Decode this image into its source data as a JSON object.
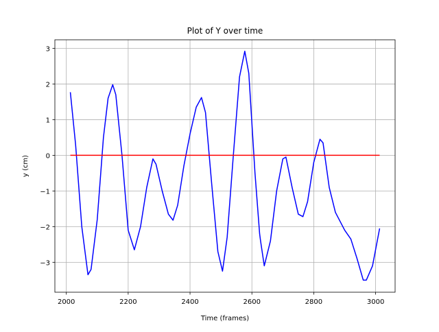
{
  "chart_data": {
    "type": "line",
    "title": "Plot of Y over time",
    "x_label": "Time (frames)",
    "y_label": "y (cm)",
    "grid": true,
    "xlim": [
      1963,
      3063
    ],
    "xticks": [
      2000,
      2200,
      2400,
      2600,
      2800,
      3000
    ],
    "ylim": [
      -3.84,
      3.24
    ],
    "yticks": [
      {
        "value": -3,
        "label": "−3"
      },
      {
        "value": -2,
        "label": "−2"
      },
      {
        "value": -1,
        "label": "−1"
      },
      0,
      1,
      2,
      3
    ],
    "series": [
      {
        "color": "#0000ff",
        "x": [
          2013,
          2030,
          2050,
          2070,
          2080,
          2100,
          2120,
          2135,
          2150,
          2160,
          2180,
          2200,
          2220,
          2240,
          2260,
          2280,
          2290,
          2310,
          2330,
          2345,
          2360,
          2380,
          2400,
          2420,
          2437,
          2450,
          2470,
          2490,
          2505,
          2520,
          2540,
          2560,
          2577,
          2590,
          2610,
          2625,
          2628,
          2640,
          2660,
          2680,
          2700,
          2710,
          2730,
          2750,
          2765,
          2780,
          2800,
          2820,
          2830,
          2850,
          2870,
          2900,
          2920,
          2940,
          2960,
          2970,
          2990,
          3013
        ],
        "values": [
          1.77,
          0.3,
          -2.0,
          -3.35,
          -3.2,
          -1.8,
          0.5,
          1.6,
          1.98,
          1.7,
          0,
          -2.1,
          -2.65,
          -2.0,
          -0.9,
          -0.1,
          -0.25,
          -1.0,
          -1.65,
          -1.82,
          -1.4,
          -0.3,
          0.6,
          1.35,
          1.62,
          1.2,
          -0.8,
          -2.7,
          -3.25,
          -2.3,
          0,
          2.2,
          2.92,
          2.3,
          -0.5,
          -2.2,
          -2.4,
          -3.1,
          -2.4,
          -1.0,
          -0.1,
          -0.05,
          -0.9,
          -1.65,
          -1.72,
          -1.3,
          -0.2,
          0.45,
          0.35,
          -0.9,
          -1.6,
          -2.1,
          -2.35,
          -2.9,
          -3.5,
          -3.5,
          -3.1,
          -2.05
        ]
      },
      {
        "color": "#ff0000",
        "x": [
          2013,
          3013
        ],
        "values": [
          0,
          0
        ]
      }
    ]
  }
}
